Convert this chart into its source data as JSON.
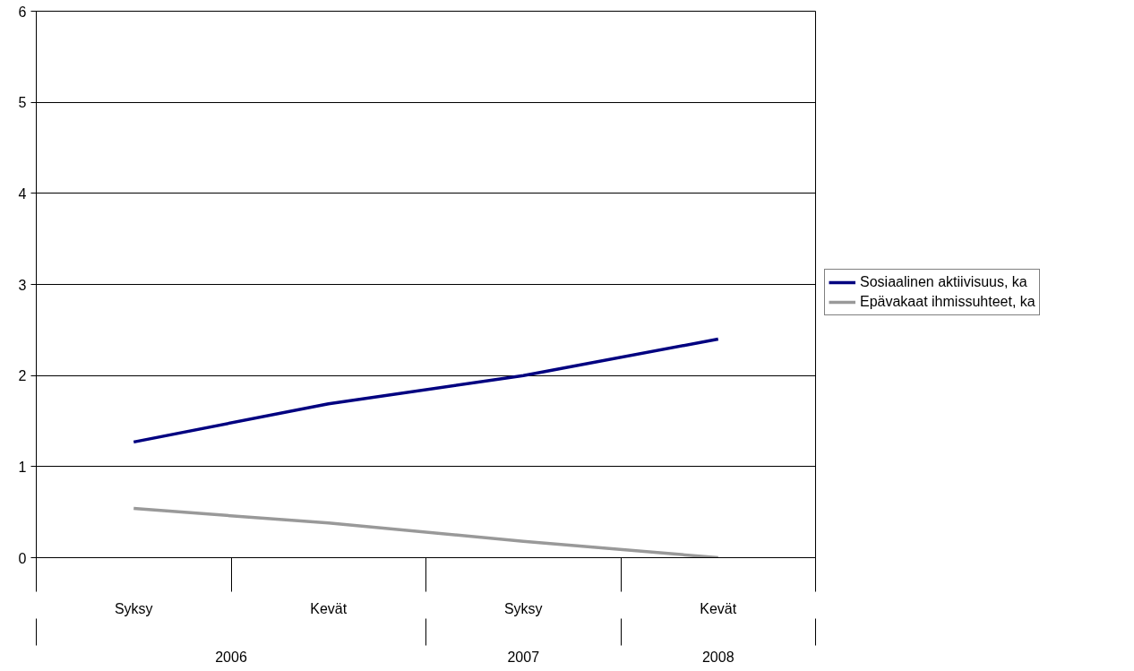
{
  "chart_data": {
    "type": "line",
    "categories": [
      "Syksy",
      "Kevät",
      "Syksy",
      "Kevät"
    ],
    "series": [
      {
        "name": "Sosiaalinen aktiivisuus, ka",
        "color": "#000080",
        "values": [
          1.27,
          1.69,
          2.0,
          2.4
        ]
      },
      {
        "name": "Epävakaat ihmissuhteet, ka",
        "color": "#999999",
        "values": [
          0.54,
          0.38,
          0.18,
          0.0
        ]
      }
    ],
    "annotations": [
      "2006",
      "2007",
      "2008"
    ],
    "ylim": [
      0,
      6
    ],
    "yticks": [
      0,
      1,
      2,
      3,
      4,
      5,
      6
    ],
    "grid": "y",
    "legend": "right",
    "marker": "none",
    "line_style": "solid"
  }
}
